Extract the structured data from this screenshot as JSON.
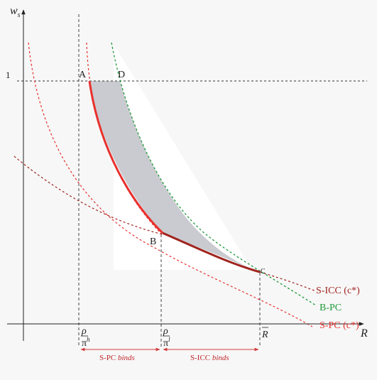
{
  "axes": {
    "y_label": "w",
    "y_sub": "s",
    "x_label": "R",
    "one_label": "1"
  },
  "points": {
    "A": "A",
    "B": "B",
    "C": "C",
    "D": "D"
  },
  "ticks": {
    "rho": "ρ",
    "pi_h": "π",
    "pi_h_sup": "h",
    "pi_l": "π",
    "pi_l_sup": "l",
    "r_bar": "R"
  },
  "curves": {
    "s_icc": "S-ICC (c*)",
    "b_pc": "B-PC",
    "s_pc": "S-PC (c*)"
  },
  "regions": {
    "s_pc_binds_prefix": "S-PC ",
    "s_pc_binds_em": "binds",
    "s_icc_binds_prefix": "S-ICC ",
    "s_icc_binds_em": "binds"
  },
  "colors": {
    "red": "#e8312e",
    "dark_red": "#a0241e",
    "green": "#1e9a3a",
    "shade": "#c9cbd0",
    "region_text": "#c0282c"
  }
}
